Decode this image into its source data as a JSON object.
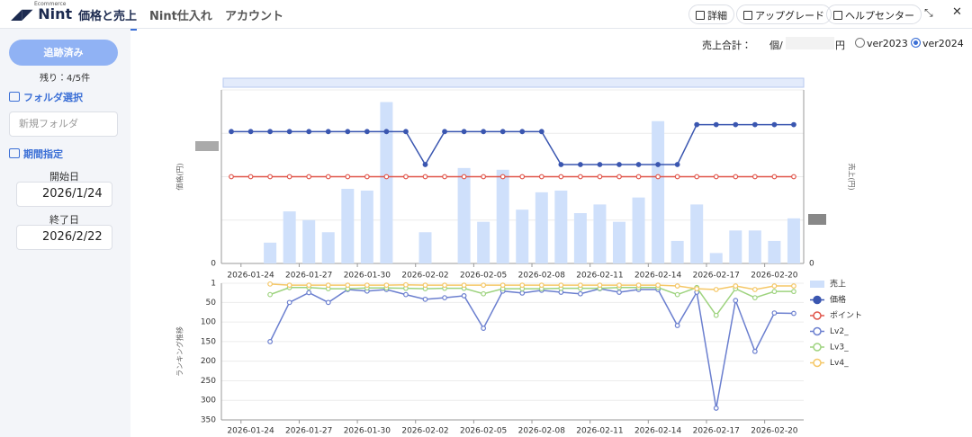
{
  "nav": {
    "logo_small": "Ecommerce",
    "logo": "Nint",
    "tabs": [
      "価格と売上",
      "Nint仕入れ",
      "アカウント"
    ],
    "buttons": [
      "詳細",
      "アップグレード",
      "ヘルプセンター"
    ]
  },
  "sidebar": {
    "tracked_button": "追跡済み",
    "remaining": "残り：4/5件",
    "folder_heading": "フォルダ選択",
    "folder_select": "新規フォルダ",
    "period_heading": "期間指定",
    "start_label": "開始日",
    "start_date": "2026/1/24",
    "end_label": "終了日",
    "end_date": "2026/2/22"
  },
  "summary": {
    "label": "売上合計：",
    "units": "個/",
    "yen": "円",
    "versions": [
      "ver2023",
      "ver2024"
    ],
    "selected_version": "ver2024"
  },
  "chart_data": [
    {
      "type": "bar",
      "y_label": "価格(円)",
      "y2_label": "売上(円)",
      "categories": [
        null,
        "2026-01-24",
        null,
        null,
        "2026-01-27",
        null,
        null,
        "2026-01-30",
        null,
        null,
        "2026-02-02",
        null,
        null,
        "2026-02-05",
        null,
        null,
        "2026-02-08",
        null,
        null,
        "2026-02-11",
        null,
        null,
        "2026-02-14",
        null,
        null,
        "2026-02-17",
        null,
        null,
        "2026-02-20",
        null
      ],
      "ylim": [
        0,
        100
      ],
      "yticks": [
        0
      ],
      "y2lim": [
        0,
        100
      ],
      "y2ticks": [
        0
      ],
      "grid": true,
      "series": [
        {
          "name": "売上",
          "type": "bar",
          "axis": "y2",
          "color": "#cfe0fb",
          "values": [
            0,
            0,
            12,
            30,
            25,
            18,
            43,
            42,
            93,
            0,
            18,
            0,
            55,
            24,
            54,
            31,
            41,
            42,
            29,
            34,
            24,
            38,
            82,
            13,
            34,
            6,
            19,
            19,
            13,
            26
          ]
        },
        {
          "name": "価格",
          "type": "line",
          "color": "#3a56b0",
          "filled": true,
          "values": [
            76,
            76,
            76,
            76,
            76,
            76,
            76,
            76,
            76,
            76,
            57,
            76,
            76,
            76,
            76,
            76,
            76,
            57,
            57,
            57,
            57,
            57,
            57,
            57,
            80,
            80,
            80,
            80,
            80,
            80
          ]
        },
        {
          "name": "ポイント",
          "type": "line",
          "color": "#e0554a",
          "filled": false,
          "values": [
            50,
            50,
            50,
            50,
            50,
            50,
            50,
            50,
            50,
            50,
            50,
            50,
            50,
            50,
            50,
            50,
            50,
            50,
            50,
            50,
            50,
            50,
            50,
            50,
            50,
            50,
            50,
            50,
            50,
            50
          ]
        }
      ]
    },
    {
      "type": "line",
      "y_label": "ランキング推移",
      "y_inverted": true,
      "categories": [
        null,
        "2026-01-24",
        null,
        null,
        "2026-01-27",
        null,
        null,
        "2026-01-30",
        null,
        null,
        "2026-02-02",
        null,
        null,
        "2026-02-05",
        null,
        null,
        "2026-02-08",
        null,
        null,
        "2026-02-11",
        null,
        null,
        "2026-02-14",
        null,
        null,
        "2026-02-17",
        null,
        null,
        "2026-02-20",
        null
      ],
      "ylim": [
        1,
        350
      ],
      "yticks": [
        1,
        50,
        100,
        150,
        200,
        250,
        300,
        350
      ],
      "grid": true,
      "series": [
        {
          "name": "Lv2_",
          "color": "#6b7fcf",
          "values": [
            null,
            null,
            150,
            50,
            25,
            50,
            17,
            21,
            17,
            30,
            42,
            38,
            33,
            116,
            21,
            26,
            19,
            24,
            28,
            15,
            24,
            17,
            17,
            109,
            24,
            320,
            45,
            175,
            77,
            78
          ]
        },
        {
          "name": "Lv3_",
          "color": "#9ed37f",
          "values": [
            null,
            null,
            30,
            12,
            12,
            15,
            15,
            13,
            13,
            14,
            15,
            14,
            14,
            28,
            15,
            15,
            15,
            14,
            14,
            14,
            12,
            12,
            12,
            30,
            12,
            83,
            15,
            38,
            22,
            22
          ]
        },
        {
          "name": "Lv4_",
          "color": "#f5c766",
          "values": [
            null,
            null,
            3,
            6,
            6,
            6,
            6,
            6,
            6,
            5,
            6,
            6,
            6,
            6,
            6,
            6,
            6,
            6,
            6,
            6,
            6,
            6,
            6,
            8,
            15,
            17,
            8,
            17,
            8,
            8
          ]
        }
      ]
    }
  ]
}
